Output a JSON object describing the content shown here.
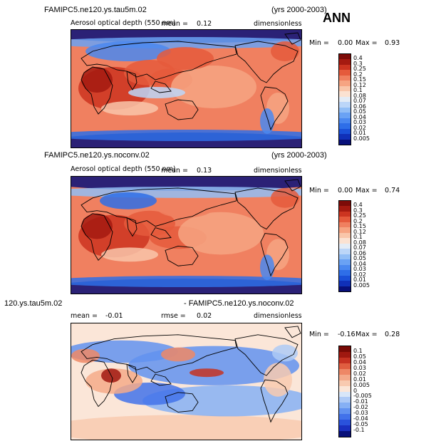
{
  "season_label": "ANN",
  "panels": [
    {
      "case_name": "FAMIPC5.ne120.ys.tau5m.02",
      "years": "(yrs 2000-2003)",
      "variable": "Aerosol optical depth (550 nm)",
      "mean_label": "mean =",
      "mean_value": "0.12",
      "rmse_label": "",
      "rmse_value": "",
      "units": "dimensionless",
      "min_label": "Min =",
      "min_value": "0.00",
      "max_label": "Max =",
      "max_value": "0.93",
      "colorbar_levels": [
        "0.4",
        "0.3",
        "0.25",
        "0.2",
        "0.15",
        "0.12",
        "0.1",
        "0.08",
        "0.07",
        "0.06",
        "0.05",
        "0.04",
        "0.03",
        "0.02",
        "0.01",
        "0.005"
      ]
    },
    {
      "case_name": "FAMIPC5.ne120.ys.noconv.02",
      "years": "(yrs 2000-2003)",
      "variable": "Aerosol optical depth (550 nm)",
      "mean_label": "mean =",
      "mean_value": "0.13",
      "rmse_label": "",
      "rmse_value": "",
      "units": "dimensionless",
      "min_label": "Min =",
      "min_value": "0.00",
      "max_label": "Max =",
      "max_value": "0.74",
      "colorbar_levels": [
        "0.4",
        "0.3",
        "0.25",
        "0.2",
        "0.15",
        "0.12",
        "0.1",
        "0.08",
        "0.07",
        "0.06",
        "0.05",
        "0.04",
        "0.03",
        "0.02",
        "0.01",
        "0.005"
      ]
    },
    {
      "case_name": "120.ys.tau5m.02",
      "years": "- FAMIPC5.ne120.ys.noconv.02",
      "variable": "",
      "mean_label": "mean =",
      "mean_value": "-0.01",
      "rmse_label": "rmse =",
      "rmse_value": "0.02",
      "units": "dimensionless",
      "min_label": "Min =",
      "min_value": "-0.16",
      "max_label": "Max =",
      "max_value": "0.28",
      "colorbar_levels": [
        "0.1",
        "0.05",
        "0.04",
        "0.03",
        "0.02",
        "0.01",
        "0.005",
        "0",
        "-0.005",
        "-0.01",
        "-0.02",
        "-0.03",
        "-0.04",
        "-0.05",
        "-0.1"
      ]
    }
  ],
  "chart_data": [
    {
      "type": "heatmap",
      "title": "FAMIPC5.ne120.ys.tau5m.02 (yrs 2000-2003)",
      "subtitle": "Aerosol optical depth (550 nm)",
      "mean": 0.12,
      "min": 0.0,
      "max": 0.93,
      "units": "dimensionless",
      "levels": [
        0.005,
        0.01,
        0.02,
        0.03,
        0.04,
        0.05,
        0.06,
        0.07,
        0.08,
        0.1,
        0.12,
        0.15,
        0.2,
        0.25,
        0.3,
        0.4
      ],
      "colors": [
        "#08107a",
        "#1030b8",
        "#1a50d8",
        "#2e6ee8",
        "#4a88f0",
        "#6aa2f4",
        "#92bef6",
        "#bcd6f8",
        "#e4ecf6",
        "#fbe2d2",
        "#f9c6aa",
        "#f6a482",
        "#f08060",
        "#e55a3c",
        "#cc3420",
        "#a51a10",
        "#7d0c08"
      ]
    },
    {
      "type": "heatmap",
      "title": "FAMIPC5.ne120.ys.noconv.02 (yrs 2000-2003)",
      "subtitle": "Aerosol optical depth (550 nm)",
      "mean": 0.13,
      "min": 0.0,
      "max": 0.74,
      "units": "dimensionless",
      "levels": [
        0.005,
        0.01,
        0.02,
        0.03,
        0.04,
        0.05,
        0.06,
        0.07,
        0.08,
        0.1,
        0.12,
        0.15,
        0.2,
        0.25,
        0.3,
        0.4
      ],
      "colors": [
        "#08107a",
        "#1030b8",
        "#1a50d8",
        "#2e6ee8",
        "#4a88f0",
        "#6aa2f4",
        "#92bef6",
        "#bcd6f8",
        "#e4ecf6",
        "#fbe2d2",
        "#f9c6aa",
        "#f6a482",
        "#f08060",
        "#e55a3c",
        "#cc3420",
        "#a51a10",
        "#7d0c08"
      ]
    },
    {
      "type": "heatmap",
      "title": "120.ys.tau5m.02 - FAMIPC5.ne120.ys.noconv.02",
      "mean": -0.01,
      "rmse": 0.02,
      "min": -0.16,
      "max": 0.28,
      "units": "dimensionless",
      "levels": [
        -0.1,
        -0.05,
        -0.04,
        -0.03,
        -0.02,
        -0.01,
        -0.005,
        0,
        0.005,
        0.01,
        0.02,
        0.03,
        0.04,
        0.05,
        0.1
      ],
      "colors": [
        "#08107a",
        "#1a30c0",
        "#2a52dc",
        "#4272ea",
        "#6292f0",
        "#86b0f4",
        "#aecaf6",
        "#d8e6f8",
        "#fbe6d8",
        "#f8cab0",
        "#f4aa8a",
        "#ee8866",
        "#e05e40",
        "#c63222",
        "#a01810",
        "#780a06"
      ]
    }
  ]
}
